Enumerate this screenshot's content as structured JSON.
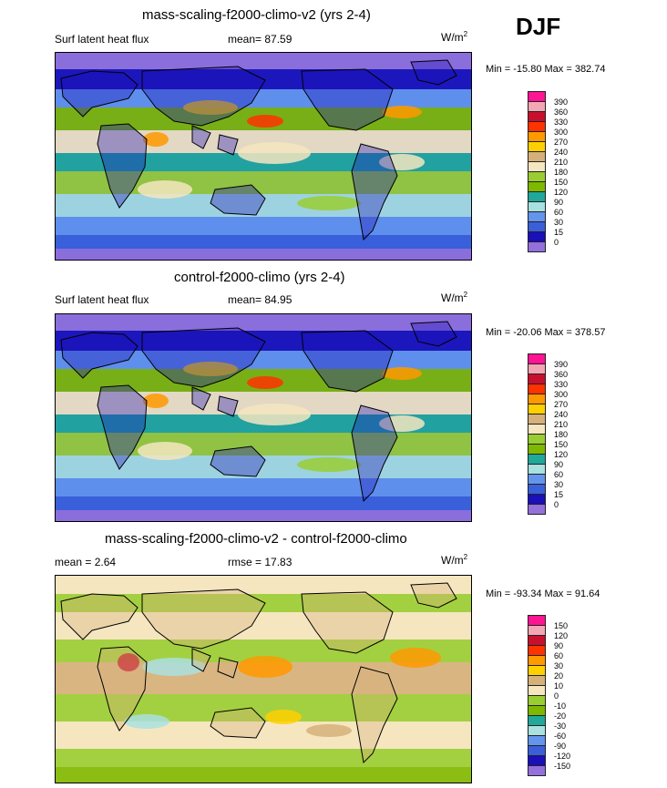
{
  "season": "DJF",
  "panels": [
    {
      "title": "mass-scaling-f2000-climo-v2 (yrs 2-4)",
      "left": "Surf latent heat flux",
      "center": "mean=  87.59",
      "units_base": "W/m",
      "units_exp": "2",
      "minmax": "Min = -15.80 Max = 382.74",
      "colorbar": {
        "labels": [
          "390",
          "360",
          "330",
          "300",
          "270",
          "240",
          "210",
          "180",
          "150",
          "120",
          "90",
          "60",
          "30",
          "15",
          "0"
        ],
        "colors": [
          "#ff1493",
          "#f4a6b4",
          "#c8102e",
          "#ff3300",
          "#ff9900",
          "#ffd000",
          "#d6b07a",
          "#f5e6c0",
          "#9acd32",
          "#7fb800",
          "#20a89a",
          "#a9e0e0",
          "#6495ed",
          "#3a5fd9",
          "#1a0fb8",
          "#9370db"
        ]
      },
      "chart_data": {
        "type": "heatmap",
        "title": "mass-scaling-f2000-climo-v2 (yrs 2-4)",
        "variable": "Surf latent heat flux",
        "mean": 87.59,
        "min": -15.8,
        "max": 382.74,
        "units": "W/m2",
        "contour_levels": [
          0,
          15,
          30,
          60,
          90,
          120,
          150,
          180,
          210,
          240,
          270,
          300,
          330,
          360,
          390
        ]
      }
    },
    {
      "title": "control-f2000-climo (yrs 2-4)",
      "left": "Surf latent heat flux",
      "center": "mean=  84.95",
      "units_base": "W/m",
      "units_exp": "2",
      "minmax": "Min = -20.06 Max = 378.57",
      "colorbar": {
        "labels": [
          "390",
          "360",
          "330",
          "300",
          "270",
          "240",
          "210",
          "180",
          "150",
          "120",
          "90",
          "60",
          "30",
          "15",
          "0"
        ],
        "colors": [
          "#ff1493",
          "#f4a6b4",
          "#c8102e",
          "#ff3300",
          "#ff9900",
          "#ffd000",
          "#d6b07a",
          "#f5e6c0",
          "#9acd32",
          "#7fb800",
          "#20a89a",
          "#a9e0e0",
          "#6495ed",
          "#3a5fd9",
          "#1a0fb8",
          "#9370db"
        ]
      },
      "chart_data": {
        "type": "heatmap",
        "title": "control-f2000-climo (yrs 2-4)",
        "variable": "Surf latent heat flux",
        "mean": 84.95,
        "min": -20.06,
        "max": 378.57,
        "units": "W/m2",
        "contour_levels": [
          0,
          15,
          30,
          60,
          90,
          120,
          150,
          180,
          210,
          240,
          270,
          300,
          330,
          360,
          390
        ]
      }
    },
    {
      "title": "mass-scaling-f2000-climo-v2 - control-f2000-climo",
      "left": "mean =   2.64",
      "center": "rmse =  17.83",
      "units_base": "W/m",
      "units_exp": "2",
      "minmax": "Min = -93.34 Max =  91.64",
      "colorbar": {
        "labels": [
          "150",
          "120",
          "90",
          "60",
          "30",
          "20",
          "10",
          "0",
          "-10",
          "-20",
          "-30",
          "-60",
          "-90",
          "-120",
          "-150"
        ],
        "colors": [
          "#ff1493",
          "#f4a6b4",
          "#c8102e",
          "#ff3300",
          "#ff9900",
          "#ffd000",
          "#d6b07a",
          "#f5e6c0",
          "#9acd32",
          "#7fb800",
          "#20a89a",
          "#a9e0e0",
          "#6495ed",
          "#3a5fd9",
          "#1a0fb8",
          "#9370db"
        ]
      },
      "chart_data": {
        "type": "heatmap",
        "title": "mass-scaling-f2000-climo-v2 - control-f2000-climo",
        "mean": 2.64,
        "rmse": 17.83,
        "min": -93.34,
        "max": 91.64,
        "units": "W/m2",
        "contour_levels": [
          -150,
          -120,
          -90,
          -60,
          -30,
          -20,
          -10,
          0,
          10,
          20,
          30,
          60,
          90,
          120,
          150
        ]
      }
    }
  ]
}
